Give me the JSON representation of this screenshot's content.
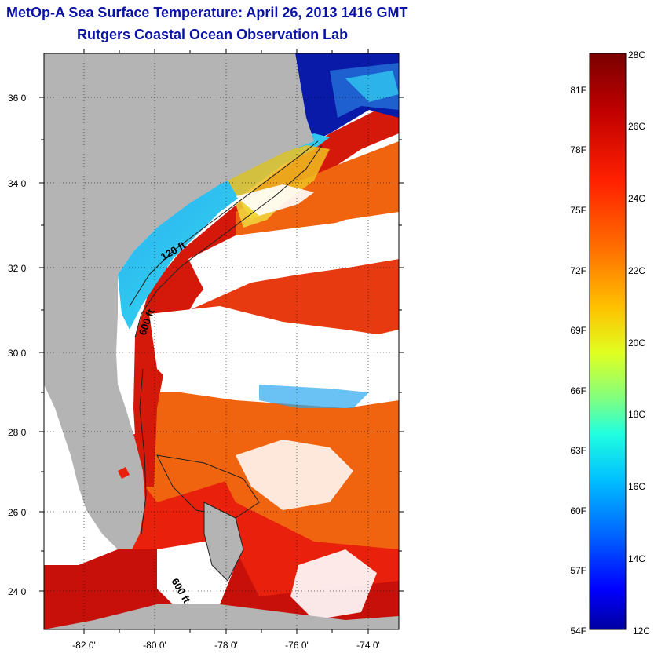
{
  "title": "MetOp-A Sea Surface Temperature:  April 26, 2013 1416 GMT",
  "subtitle": "Rutgers Coastal Ocean Observation Lab",
  "map": {
    "lat_labels": [
      "36 0'",
      "34 0'",
      "32 0'",
      "30 0'",
      "28 0'",
      "26 0'",
      "24 0'"
    ],
    "lon_labels": [
      "-82 0'",
      "-80 0'",
      "-78 0'",
      "-76 0'",
      "-74 0'"
    ],
    "contour_labels": [
      "120 ft",
      "600 ft",
      "600 ft"
    ],
    "colors": {
      "land": "#b4b4b4",
      "cloud": "#ffffff",
      "warm": "#e8200c",
      "hot": "#c8100a",
      "orange": "#f06410",
      "cool": "#2aa8ee",
      "cold": "#0a1aa8"
    }
  },
  "colorbar": {
    "celsius_labels": [
      "28C",
      "26C",
      "24C",
      "22C",
      "20C",
      "18C",
      "16C",
      "14C",
      "12C"
    ],
    "fahrenheit_labels": [
      "81F",
      "78F",
      "75F",
      "72F",
      "69F",
      "66F",
      "63F",
      "60F",
      "57F",
      "54F"
    ],
    "colors": [
      "#7a0000",
      "#c00000",
      "#ff2000",
      "#ff7000",
      "#ffc000",
      "#e0ff20",
      "#80ff80",
      "#20ffe0",
      "#00c0ff",
      "#0060ff",
      "#0000ff",
      "#0000a0"
    ]
  }
}
